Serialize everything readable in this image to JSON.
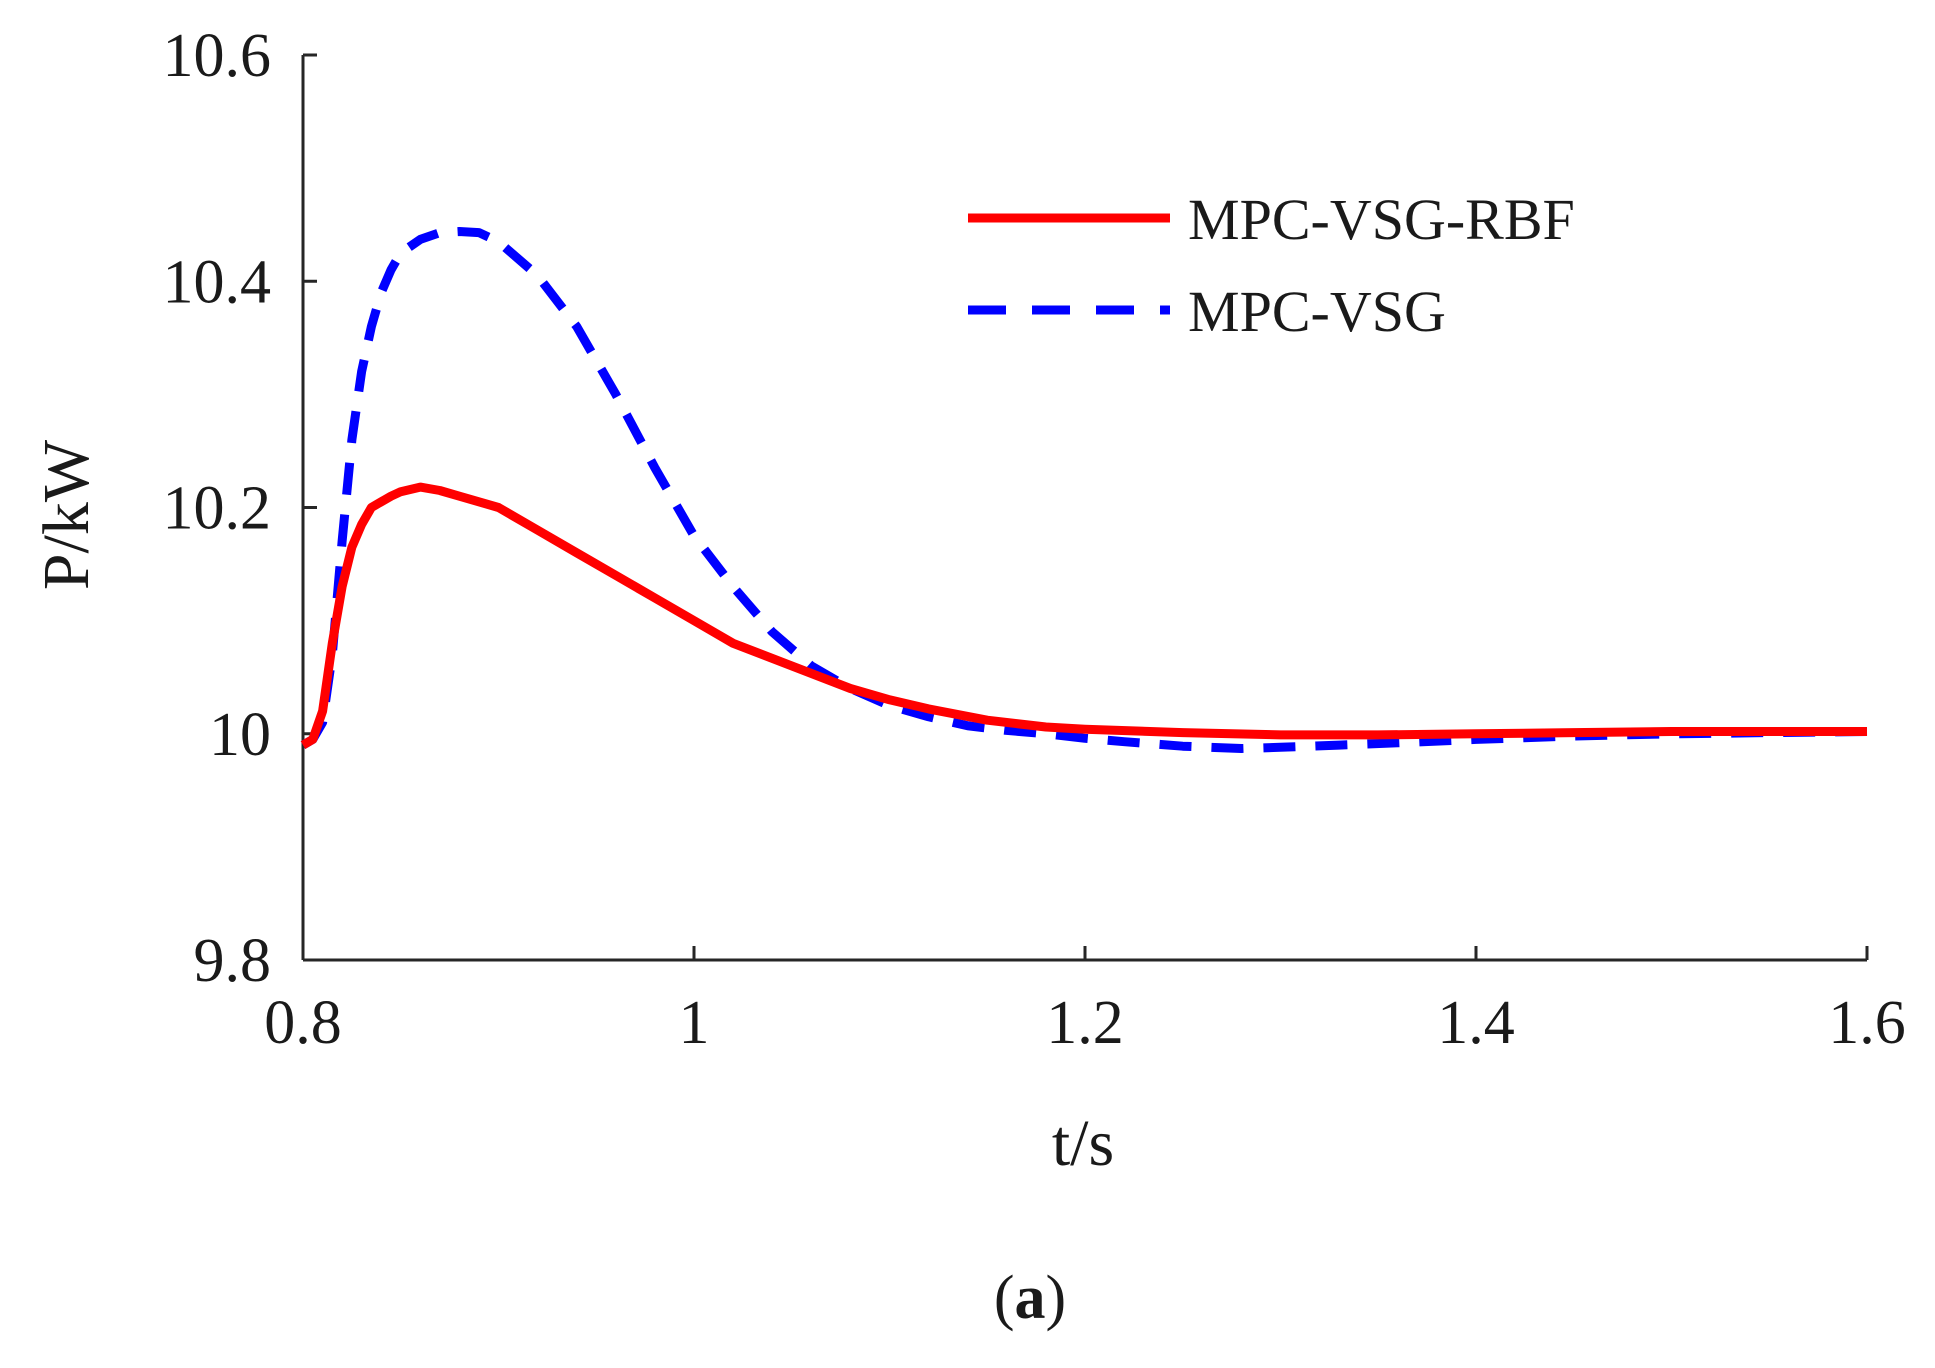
{
  "chart_data": {
    "type": "line",
    "title": "",
    "xlabel": "t/s",
    "ylabel": "P/kW",
    "xlim": [
      0.8,
      1.6
    ],
    "ylim": [
      9.8,
      10.6
    ],
    "xticks": [
      0.8,
      1.0,
      1.2,
      1.4,
      1.6
    ],
    "xtick_labels": [
      "0.8",
      "1",
      "1.2",
      "1.4",
      "1.6"
    ],
    "yticks": [
      9.8,
      10.0,
      10.2,
      10.4,
      10.6
    ],
    "ytick_labels": [
      "9.8",
      "10",
      "10.2",
      "10.4",
      "10.6"
    ],
    "grid": false,
    "legend_position": "top-right",
    "series": [
      {
        "name": "MPC-VSG-RBF",
        "color": "#ff0000",
        "style": "solid",
        "x": [
          0.8,
          0.805,
          0.81,
          0.815,
          0.82,
          0.825,
          0.83,
          0.835,
          0.84,
          0.845,
          0.85,
          0.86,
          0.87,
          0.88,
          0.9,
          0.92,
          0.94,
          0.96,
          0.98,
          1.0,
          1.02,
          1.05,
          1.08,
          1.1,
          1.12,
          1.15,
          1.18,
          1.2,
          1.25,
          1.3,
          1.35,
          1.4,
          1.45,
          1.5,
          1.55,
          1.6
        ],
        "y": [
          9.99,
          9.995,
          10.02,
          10.08,
          10.13,
          10.165,
          10.185,
          10.2,
          10.205,
          10.21,
          10.214,
          10.218,
          10.215,
          10.21,
          10.2,
          10.18,
          10.16,
          10.14,
          10.12,
          10.1,
          10.08,
          10.06,
          10.04,
          10.03,
          10.022,
          10.012,
          10.006,
          10.004,
          10.001,
          9.999,
          9.999,
          10.0,
          10.001,
          10.002,
          10.002,
          10.002
        ]
      },
      {
        "name": "MPC-VSG",
        "color": "#0000ff",
        "style": "dashed",
        "x": [
          0.8,
          0.805,
          0.81,
          0.815,
          0.82,
          0.825,
          0.83,
          0.835,
          0.84,
          0.845,
          0.85,
          0.86,
          0.87,
          0.88,
          0.89,
          0.9,
          0.92,
          0.94,
          0.96,
          0.98,
          1.0,
          1.02,
          1.04,
          1.06,
          1.08,
          1.1,
          1.12,
          1.14,
          1.16,
          1.18,
          1.2,
          1.22,
          1.25,
          1.28,
          1.3,
          1.33,
          1.36,
          1.4,
          1.45,
          1.5,
          1.55,
          1.6
        ],
        "y": [
          9.99,
          9.995,
          10.01,
          10.07,
          10.17,
          10.26,
          10.32,
          10.36,
          10.39,
          10.41,
          10.425,
          10.437,
          10.443,
          10.444,
          10.443,
          10.435,
          10.405,
          10.36,
          10.3,
          10.235,
          10.175,
          10.13,
          10.09,
          10.06,
          10.04,
          10.025,
          10.015,
          10.007,
          10.003,
          10.0,
          9.996,
          9.993,
          9.989,
          9.987,
          9.988,
          9.99,
          9.992,
          9.995,
          9.998,
          10.0,
          10.001,
          10.002
        ]
      }
    ]
  },
  "panel_label": {
    "open": "(",
    "letter": "a",
    "close": ")"
  }
}
